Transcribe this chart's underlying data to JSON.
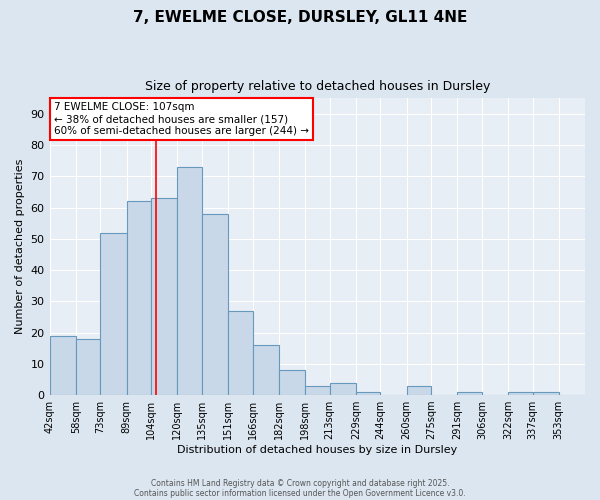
{
  "title1": "7, EWELME CLOSE, DURSLEY, GL11 4NE",
  "title2": "Size of property relative to detached houses in Dursley",
  "xlabel": "Distribution of detached houses by size in Dursley",
  "ylabel": "Number of detached properties",
  "bin_labels": [
    "42sqm",
    "58sqm",
    "73sqm",
    "89sqm",
    "104sqm",
    "120sqm",
    "135sqm",
    "151sqm",
    "166sqm",
    "182sqm",
    "198sqm",
    "213sqm",
    "229sqm",
    "244sqm",
    "260sqm",
    "275sqm",
    "291sqm",
    "306sqm",
    "322sqm",
    "337sqm",
    "353sqm"
  ],
  "bin_edges": [
    42,
    58,
    73,
    89,
    104,
    120,
    135,
    151,
    166,
    182,
    198,
    213,
    229,
    244,
    260,
    275,
    291,
    306,
    322,
    337,
    353
  ],
  "bar_heights": [
    19,
    18,
    52,
    62,
    63,
    73,
    58,
    27,
    16,
    8,
    3,
    4,
    1,
    0,
    3,
    0,
    1,
    0,
    1,
    1,
    0
  ],
  "bar_facecolor": "#c8d8e8",
  "bar_edgecolor": "#6699bb",
  "red_line_x": 107,
  "annotation_text": "7 EWELME CLOSE: 107sqm\n← 38% of detached houses are smaller (157)\n60% of semi-detached houses are larger (244) →",
  "annotation_box_facecolor": "white",
  "annotation_box_edgecolor": "red",
  "ylim": [
    0,
    95
  ],
  "yticks": [
    0,
    10,
    20,
    30,
    40,
    50,
    60,
    70,
    80,
    90
  ],
  "footnote1": "Contains HM Land Registry data © Crown copyright and database right 2025.",
  "footnote2": "Contains public sector information licensed under the Open Government Licence v3.0.",
  "bg_color": "#dce6f0",
  "plot_bg_color": "#e8eef5"
}
